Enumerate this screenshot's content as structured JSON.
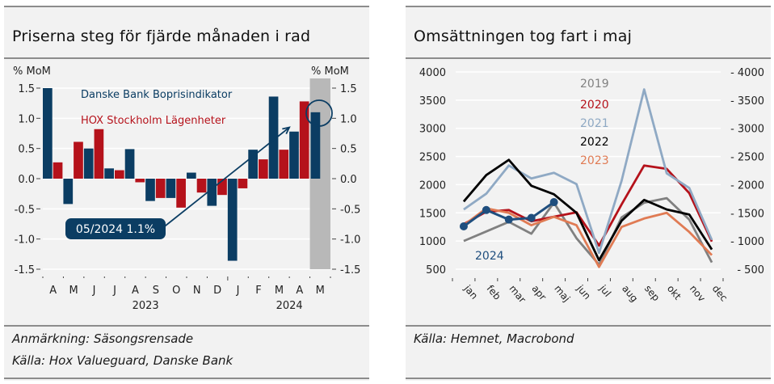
{
  "left_panel": {
    "title": "Priserna steg för fjärde månaden i rad",
    "notes": [
      "Anmärkning: Säsongsrensade",
      "Källa: Hox Valueguard, Danske Bank"
    ]
  },
  "right_panel": {
    "title": "Omsättningen tog fart i maj",
    "notes": [
      "Källa: Hemnet, Macrobond"
    ]
  },
  "colors": {
    "danske": "#0b3d63",
    "hox": "#b5121b",
    "highlight": "#b8b8b8",
    "y2019": "#808080",
    "y2020": "#b5121b",
    "y2021": "#8fa9c4",
    "y2022": "#000000",
    "y2023": "#e07b54",
    "y2024": "#1f4e7e"
  },
  "chart_data": [
    {
      "type": "bar",
      "title": "Priserna steg för fjärde månaden i rad",
      "ylabel_left": "% MoM",
      "ylabel_right": "% MoM",
      "ylim": [
        -1.5,
        1.5
      ],
      "yticks": [
        "1.5",
        "1.0",
        "0.5",
        "0.0",
        "-0.5",
        "-1.0",
        "-1.5"
      ],
      "ytick_values": [
        1.5,
        1.0,
        0.5,
        0.0,
        -0.5,
        -1.0,
        -1.5
      ],
      "categories": [
        "A",
        "M",
        "J",
        "J",
        "A",
        "S",
        "O",
        "N",
        "D",
        "J",
        "F",
        "M",
        "A",
        "M"
      ],
      "year_labels": [
        {
          "label": "2023",
          "center_index": 4.5
        },
        {
          "label": "2024",
          "center_index": 11.5
        }
      ],
      "series": [
        {
          "name": "Danske Bank Boprisindikator",
          "values": [
            1.5,
            -0.42,
            0.5,
            0.17,
            0.49,
            -0.37,
            -0.32,
            0.1,
            -0.45,
            -1.36,
            0.48,
            1.36,
            0.78,
            1.1
          ]
        },
        {
          "name": "HOX Stockholm Lägenheter",
          "values": [
            0.27,
            0.61,
            0.82,
            0.14,
            -0.06,
            -0.32,
            -0.48,
            -0.23,
            -0.27,
            -0.16,
            0.32,
            0.48,
            1.28,
            null
          ]
        }
      ],
      "highlight_index": 13,
      "annotation": {
        "label": "05/2024 1.1%",
        "arrow_from_index": 6.5,
        "arrow_from_value": -0.95,
        "arrow_to_index": 12.0,
        "arrow_to_value": 0.85
      },
      "grid": true,
      "legend": "top-left (inline text)"
    },
    {
      "type": "line",
      "title": "Omsättningen tog fart i maj",
      "ylim": [
        500,
        4000
      ],
      "yticks": [
        "4000",
        "3500",
        "3000",
        "2500",
        "2000",
        "1500",
        "1000",
        "500"
      ],
      "ytick_values": [
        4000,
        3500,
        3000,
        2500,
        2000,
        1500,
        1000,
        500
      ],
      "categories": [
        "jan",
        "feb",
        "mar",
        "apr",
        "maj",
        "jun",
        "jul",
        "aug",
        "sep",
        "okt",
        "nov",
        "dec"
      ],
      "series": [
        {
          "name": "2019",
          "color_key": "y2019",
          "values": [
            1000,
            1170,
            1340,
            1130,
            1680,
            1050,
            580,
            1420,
            1680,
            1760,
            1380,
            620
          ]
        },
        {
          "name": "2020",
          "color_key": "y2020",
          "values": [
            1300,
            1520,
            1550,
            1350,
            1430,
            1510,
            920,
            1650,
            2340,
            2280,
            1850,
            990
          ]
        },
        {
          "name": "2021",
          "color_key": "y2021",
          "values": [
            1560,
            1840,
            2340,
            2110,
            2210,
            2010,
            790,
            2070,
            3690,
            2200,
            1940,
            1020
          ]
        },
        {
          "name": "2022",
          "color_key": "y2022",
          "values": [
            1700,
            2170,
            2440,
            1980,
            1830,
            1500,
            660,
            1360,
            1730,
            1560,
            1470,
            850
          ]
        },
        {
          "name": "2023",
          "color_key": "y2023",
          "values": [
            1280,
            1580,
            1500,
            1280,
            1430,
            1280,
            540,
            1250,
            1400,
            1500,
            1160,
            750
          ]
        },
        {
          "name": "2024",
          "color_key": "y2024",
          "values": [
            1260,
            1550,
            1380,
            1410,
            1690
          ],
          "markers": true
        }
      ],
      "legend": "top-center (stacked text)",
      "grid": true
    }
  ]
}
